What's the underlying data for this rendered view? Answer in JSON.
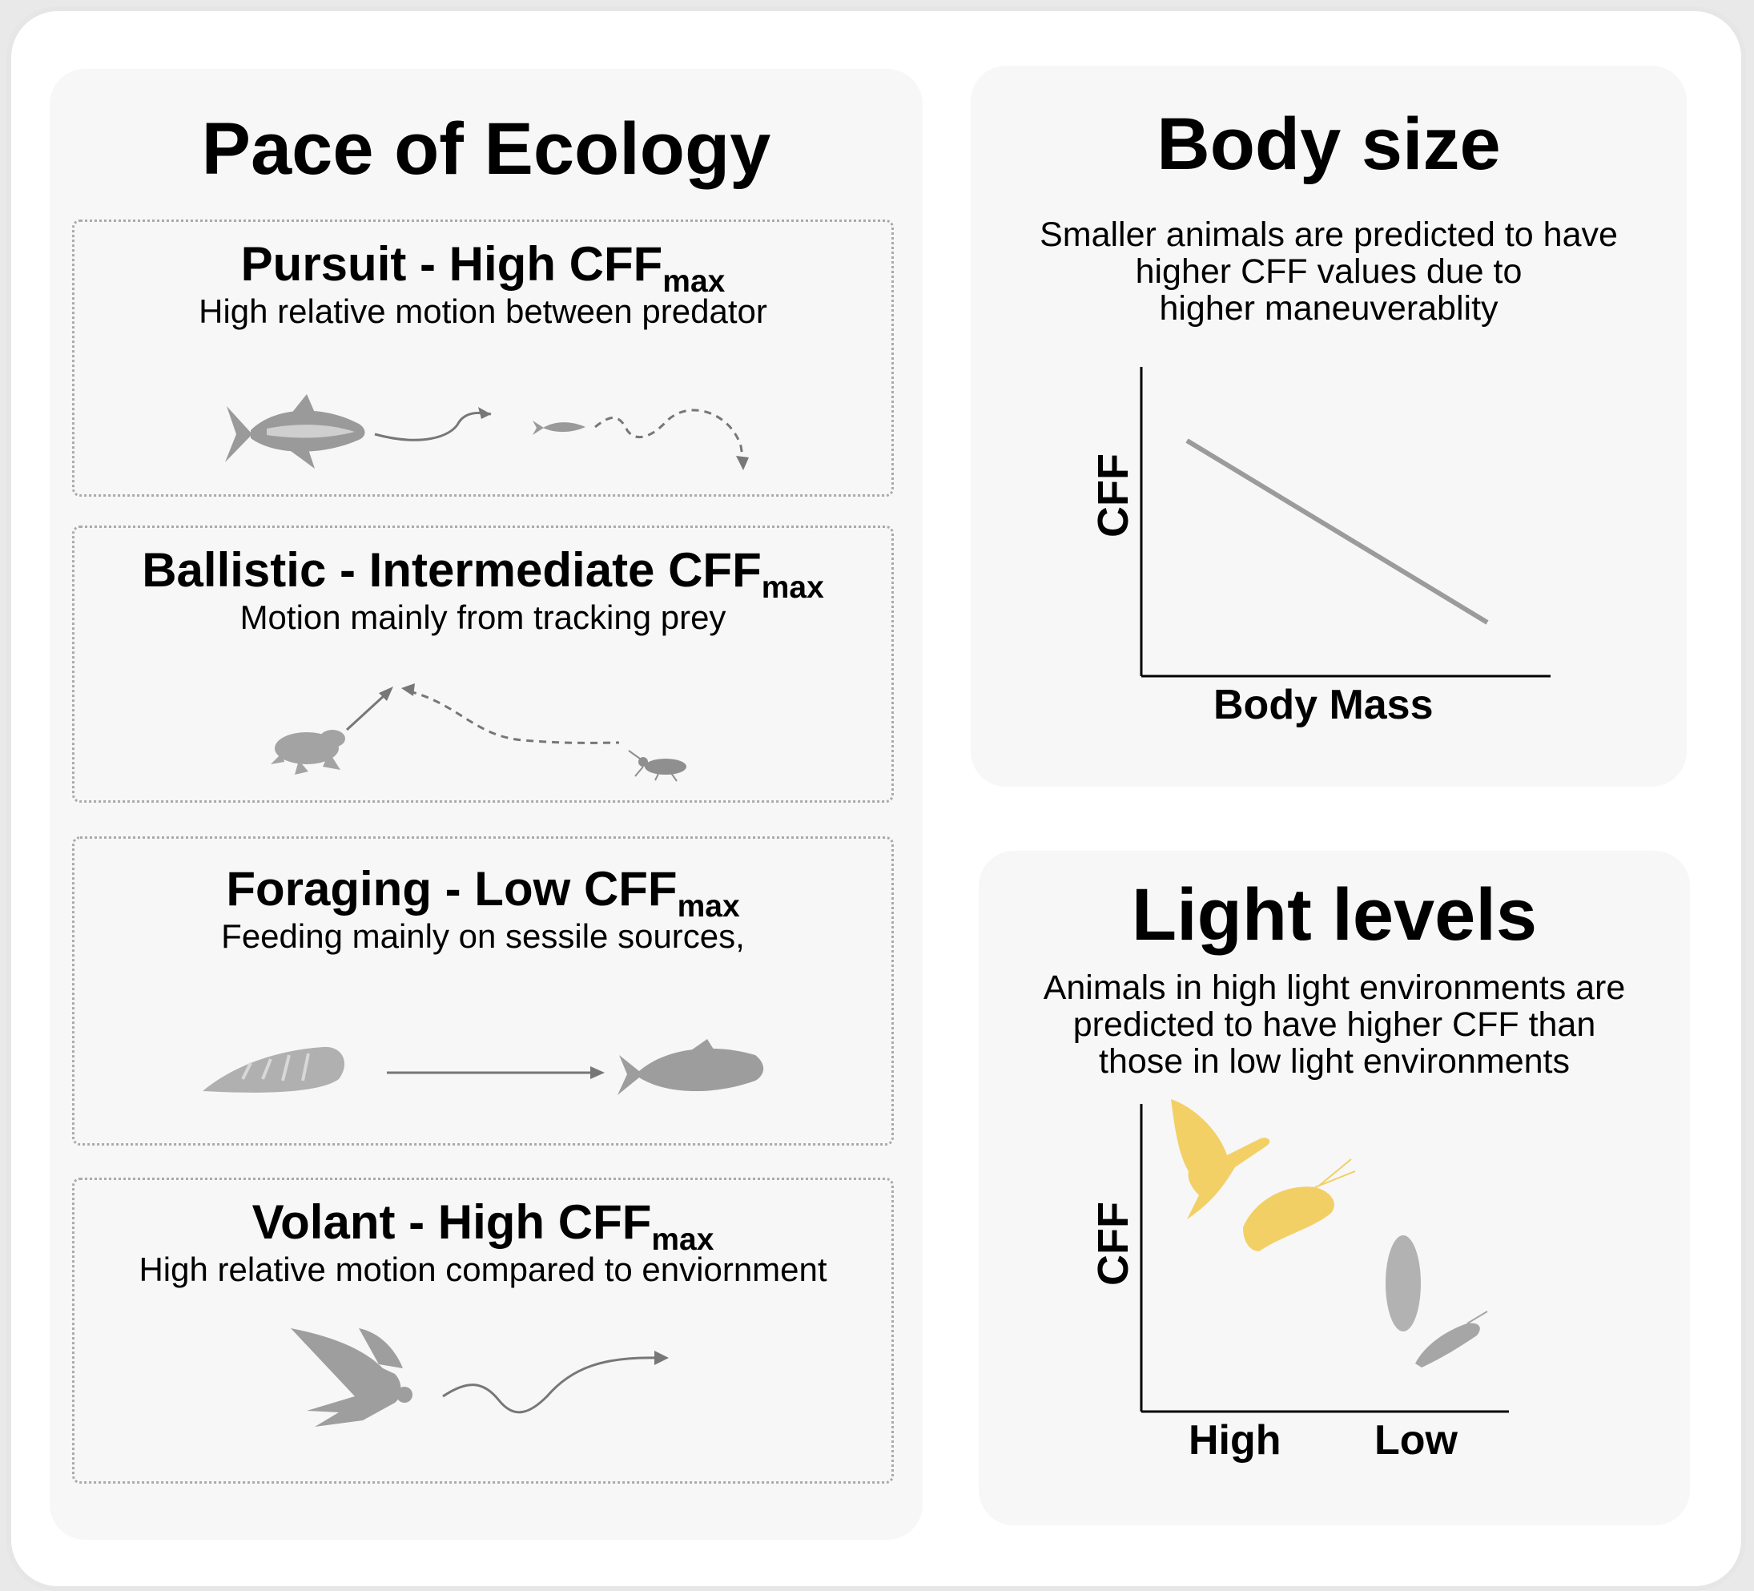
{
  "pace": {
    "title": "Pace of Ecology",
    "cards": [
      {
        "title": "Pursuit - High CFF",
        "sub": "max",
        "desc": "High relative motion between predator"
      },
      {
        "title": "Ballistic - Intermediate CFF",
        "sub": "max",
        "desc": "Motion mainly from tracking prey"
      },
      {
        "title": "Foraging - Low CFF",
        "sub": "max",
        "desc": "Feeding mainly on sessile sources,"
      },
      {
        "title": "Volant - High CFF",
        "sub": "max",
        "desc": "High relative motion compared to enviornment"
      }
    ]
  },
  "body_size": {
    "title": "Body size",
    "desc": [
      "Smaller animals are predicted to have",
      "higher CFF values due to",
      "higher maneuverablity"
    ],
    "ylabel": "CFF",
    "xlabel": "Body Mass"
  },
  "light": {
    "title": "Light levels",
    "desc": [
      "Animals in high light environments are",
      "predicted to have higher CFF than",
      "those in low light environments"
    ],
    "ylabel": "CFF",
    "x_high": "High",
    "x_low": "Low"
  },
  "colors": {
    "gray_line": "#9b9b9b",
    "arrow": "#777777",
    "gold": "#f2c94c",
    "silhouette": "#a6a6a6"
  }
}
